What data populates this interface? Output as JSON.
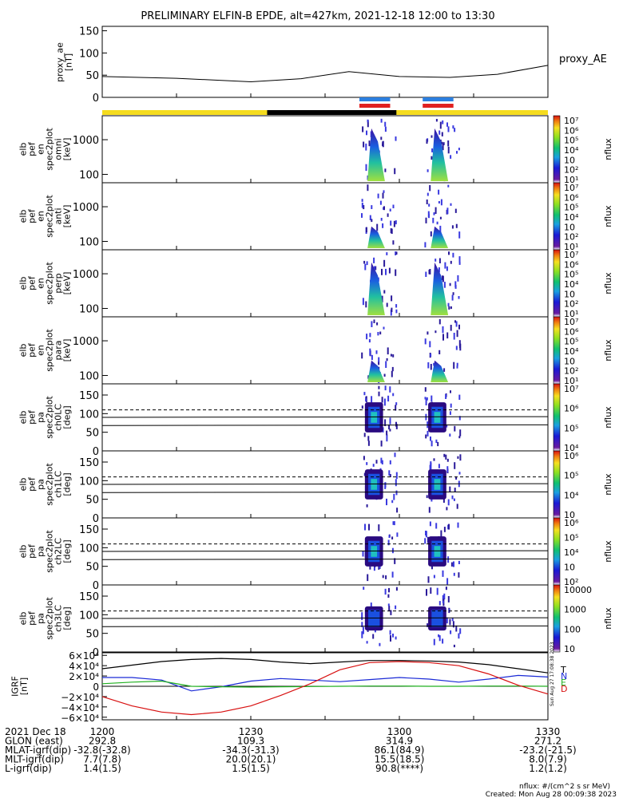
{
  "title": "PRELIMINARY ELFIN-B EPDE, alt=427km, 2021-12-18 12:00 to 13:30",
  "colors": {
    "sunlit": "#f5dc1e",
    "shadow": "#000000",
    "blue_bar": "#2b7fe0",
    "red_bar": "#e02020"
  },
  "chart_data": [
    {
      "type": "line",
      "panel": "proxy_ae",
      "ylabel": [
        "proxy_ae",
        "[nT]"
      ],
      "legend": "proxy_AE",
      "ylim": [
        0,
        160
      ],
      "yticks": [
        "0",
        "50",
        "100",
        "150"
      ],
      "x": [
        12.0,
        12.25,
        12.5,
        12.67,
        12.83,
        13.0,
        13.17,
        13.33,
        13.5
      ],
      "values": [
        47,
        43,
        35,
        42,
        58,
        47,
        45,
        52,
        72
      ]
    },
    {
      "type": "heatmap",
      "panel": "omni",
      "ylabel": [
        "elb",
        "pef",
        "en",
        "spec2plot",
        "omni",
        "[keV]"
      ],
      "ylog": true,
      "yticks": [
        "100",
        "1000"
      ],
      "cbar_ticks": [
        "10⁷",
        "10⁶",
        "10⁵",
        "10⁴",
        "10⁳",
        "10²",
        "10¹"
      ],
      "cbar_label": "nflux"
    },
    {
      "type": "heatmap",
      "panel": "anti",
      "ylabel": [
        "elb",
        "pef",
        "en",
        "spec2plot",
        "anti",
        "[keV]"
      ],
      "ylog": true,
      "yticks": [
        "100",
        "1000"
      ],
      "cbar_ticks": [
        "10⁷",
        "10⁶",
        "10⁵",
        "10⁴",
        "10⁳",
        "10²",
        "10¹"
      ],
      "cbar_label": "nflux"
    },
    {
      "type": "heatmap",
      "panel": "perp",
      "ylabel": [
        "elb",
        "pef",
        "en",
        "spec2plot",
        "perp",
        "[keV]"
      ],
      "ylog": true,
      "yticks": [
        "100",
        "1000"
      ],
      "cbar_ticks": [
        "10⁷",
        "10⁶",
        "10⁵",
        "10⁴",
        "10⁳",
        "10²",
        "10¹"
      ],
      "cbar_label": "nflux"
    },
    {
      "type": "heatmap",
      "panel": "para",
      "ylabel": [
        "elb",
        "pef",
        "en",
        "spec2plot",
        "para",
        "[keV]"
      ],
      "ylog": true,
      "yticks": [
        "100",
        "1000"
      ],
      "cbar_ticks": [
        "10⁷",
        "10⁶",
        "10⁵",
        "10⁴",
        "10⁳",
        "10²",
        "10¹"
      ],
      "cbar_label": "nflux"
    },
    {
      "type": "heatmap",
      "panel": "ch0LC",
      "ylabel": [
        "elb",
        "pef",
        "pa",
        "spec2plot",
        "ch0LC",
        "[deg]"
      ],
      "ylim": [
        0,
        180
      ],
      "yticks": [
        "0",
        "50",
        "100",
        "150"
      ],
      "cbar_ticks": [
        "10⁷",
        "10⁶",
        "10⁵",
        "10⁴"
      ],
      "cbar_label": "nflux"
    },
    {
      "type": "heatmap",
      "panel": "ch1LC",
      "ylabel": [
        "elb",
        "pef",
        "pa",
        "spec2plot",
        "ch1LC",
        "[deg]"
      ],
      "ylim": [
        0,
        180
      ],
      "yticks": [
        "0",
        "50",
        "100",
        "150"
      ],
      "cbar_ticks": [
        "10⁶",
        "10⁵",
        "10⁴",
        "10⁳"
      ],
      "cbar_label": "nflux"
    },
    {
      "type": "heatmap",
      "panel": "ch2LC",
      "ylabel": [
        "elb",
        "pef",
        "pa",
        "spec2plot",
        "ch2LC",
        "[deg]"
      ],
      "ylim": [
        0,
        180
      ],
      "yticks": [
        "0",
        "50",
        "100",
        "150"
      ],
      "cbar_ticks": [
        "10⁶",
        "10⁵",
        "10⁴",
        "10⁳",
        "10²"
      ],
      "cbar_label": "nflux"
    },
    {
      "type": "heatmap",
      "panel": "ch3LC",
      "ylabel": [
        "elb",
        "pef",
        "pa",
        "spec2plot",
        "ch3LC",
        "[deg]"
      ],
      "ylim": [
        0,
        180
      ],
      "yticks": [
        "0",
        "50",
        "100",
        "150"
      ],
      "cbar_ticks": [
        "10000",
        "1000",
        "100",
        "10"
      ],
      "cbar_label": "nflux"
    },
    {
      "type": "line",
      "panel": "igrf",
      "ylabel": [
        "IGRF",
        "[nT]"
      ],
      "ylim": [
        -65000,
        65000
      ],
      "yticks": [
        "6×10⁴",
        "4×10⁴",
        "2×10⁴",
        "0",
        "−2×10⁴",
        "−4×10⁴",
        "−6×10⁴"
      ],
      "x": [
        12.0,
        12.1,
        12.2,
        12.3,
        12.4,
        12.5,
        12.6,
        12.7,
        12.8,
        12.9,
        13.0,
        13.1,
        13.2,
        13.3,
        13.4,
        13.5
      ],
      "series": [
        {
          "name": "T",
          "values": [
            34000,
            41000,
            48000,
            52000,
            54000,
            52000,
            47000,
            44000,
            47000,
            50000,
            50000,
            49000,
            47000,
            42000,
            34000,
            26000
          ]
        },
        {
          "name": "N",
          "values": [
            17000,
            17000,
            12000,
            -9000,
            -1000,
            10000,
            15000,
            12000,
            9000,
            13000,
            17000,
            14000,
            8000,
            14000,
            21000,
            18000
          ]
        },
        {
          "name": "E",
          "values": [
            5000,
            8000,
            10000,
            0,
            -1000,
            -1500,
            -1000,
            -500,
            0,
            500,
            500,
            0,
            0,
            500,
            500,
            0
          ]
        },
        {
          "name": "D",
          "values": [
            -20000,
            -38000,
            -50000,
            -55000,
            -50000,
            -38000,
            -18000,
            5000,
            32000,
            46000,
            48000,
            46000,
            40000,
            24000,
            2000,
            -15000
          ]
        }
      ]
    }
  ],
  "footer": {
    "rows": [
      {
        "label": "2021 Dec 18",
        "values": [
          "1200",
          "1230",
          "1300",
          "1330"
        ]
      },
      {
        "label": "GLON (east)",
        "values": [
          "292.8",
          "109.3",
          "314.9",
          "271.2"
        ]
      },
      {
        "label": "MLAT-igrf(dip)",
        "values": [
          "-32.8(-32.8)",
          "-34.3(-31.3)",
          "86.1(84.9)",
          "-23.2(-21.5)"
        ]
      },
      {
        "label": "MLT-igrf(dip)",
        "values": [
          "7.7(7.8)",
          "20.0(20.1)",
          "15.5(18.5)",
          "8.0(7.9)"
        ]
      },
      {
        "label": "L-igrf(dip)",
        "values": [
          "1.4(1.5)",
          "1.5(1.5)",
          "90.8(****)",
          "1.2(1.2)"
        ]
      }
    ],
    "units": "nflux: #/(cm^2 s sr MeV)",
    "created": "Created: Mon Aug 28 00:09:38 2023",
    "side_stamp": "Sun Aug 27 17:08:38 2023"
  }
}
